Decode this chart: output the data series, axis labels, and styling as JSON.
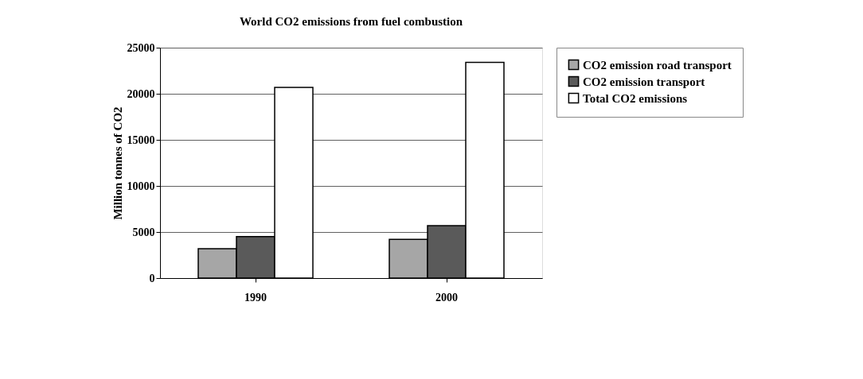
{
  "chart_data": {
    "type": "bar",
    "title": "World CO2 emissions from fuel combustion",
    "ylabel": "Million tonnes of CO2",
    "categories": [
      "1990",
      "2000"
    ],
    "series": [
      {
        "name": "CO2 emission road transport",
        "color": "#a6a6a6",
        "values": [
          3200,
          4200
        ]
      },
      {
        "name": "CO2 emission transport",
        "color": "#5a5a5a",
        "values": [
          4500,
          5700
        ]
      },
      {
        "name": "Total CO2 emissions",
        "color": "#ffffff",
        "values": [
          20700,
          23400
        ]
      }
    ],
    "ylim": [
      0,
      25000
    ],
    "yticks": [
      0,
      5000,
      10000,
      15000,
      20000,
      25000
    ],
    "grid": "y",
    "legend": "right"
  }
}
